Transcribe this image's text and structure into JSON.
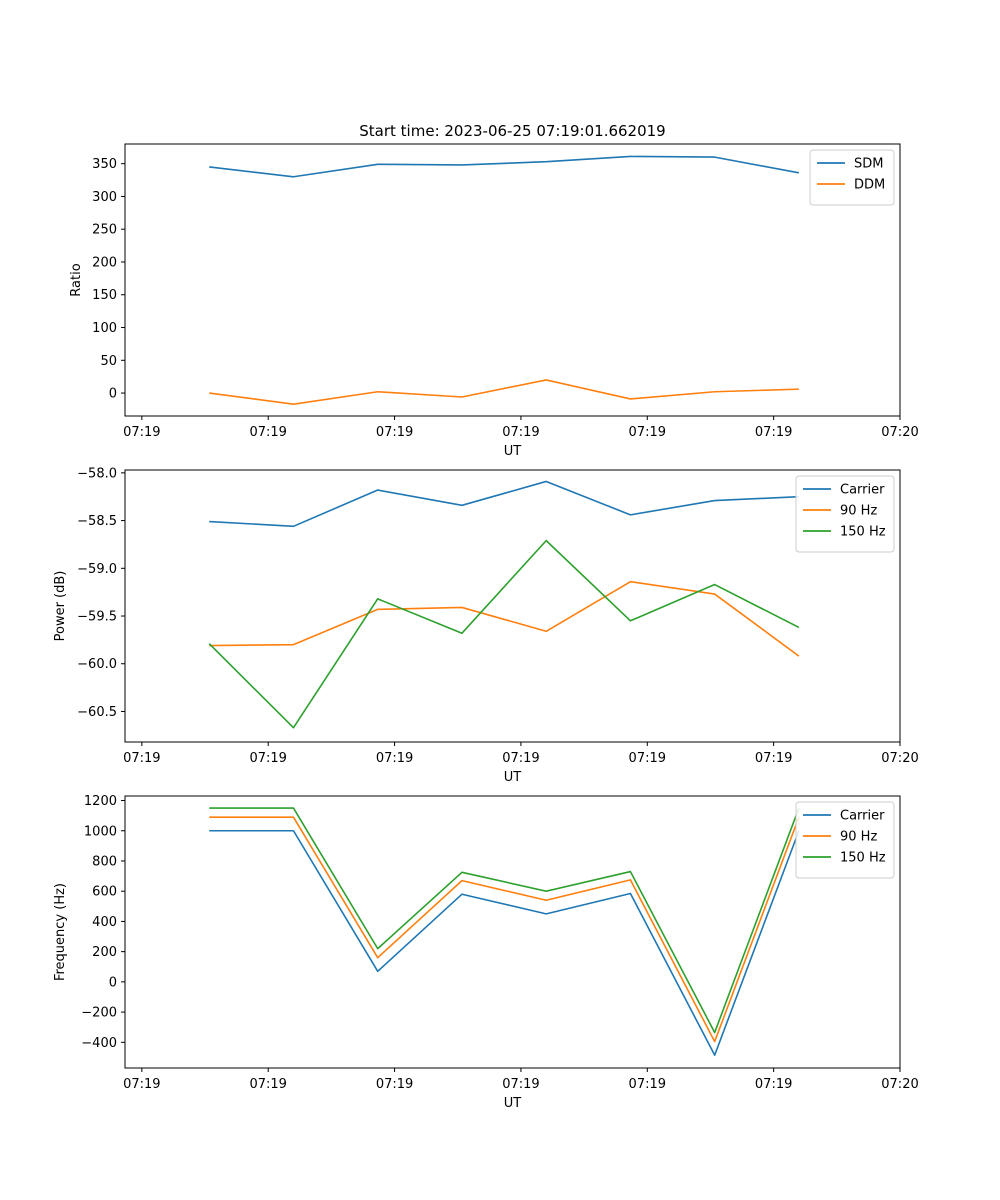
{
  "figure": {
    "title": "Start time: 2023-06-25 07:19:01.662019"
  },
  "colors": {
    "blue": "#1f77b4",
    "orange": "#ff7f0e",
    "green": "#2ca02c"
  },
  "chart_data": [
    {
      "type": "line",
      "title": "Start time: 2023-06-25 07:19:01.662019",
      "xlabel": "UT",
      "ylabel": "Ratio",
      "x": [
        1,
        2,
        3,
        4,
        5,
        6,
        7,
        8
      ],
      "xlim": [
        0,
        9.2
      ],
      "xticks": [
        0.2,
        1.7,
        3.2,
        4.7,
        6.2,
        7.7,
        9.2
      ],
      "xticklabels": [
        "07:19",
        "07:19",
        "07:19",
        "07:19",
        "07:19",
        "07:19",
        "07:20"
      ],
      "ylim": [
        -35,
        380
      ],
      "yticks": [
        0,
        50,
        100,
        150,
        200,
        250,
        300,
        350
      ],
      "yticklabels": [
        "0",
        "50",
        "100",
        "150",
        "200",
        "250",
        "300",
        "350"
      ],
      "legend": "top-right",
      "grid": false,
      "series": [
        {
          "name": "SDM",
          "color": "#1f77b4",
          "values": [
            345,
            330,
            349,
            348,
            353,
            361,
            360,
            336
          ]
        },
        {
          "name": "DDM",
          "color": "#ff7f0e",
          "values": [
            0,
            -17,
            2,
            -6,
            20,
            -9,
            2,
            6
          ]
        }
      ]
    },
    {
      "type": "line",
      "title": "",
      "xlabel": "UT",
      "ylabel": "Power (dB)",
      "x": [
        1,
        2,
        3,
        4,
        5,
        6,
        7,
        8
      ],
      "xlim": [
        0,
        9.2
      ],
      "xticks": [
        0.2,
        1.7,
        3.2,
        4.7,
        6.2,
        7.7,
        9.2
      ],
      "xticklabels": [
        "07:19",
        "07:19",
        "07:19",
        "07:19",
        "07:19",
        "07:19",
        "07:20"
      ],
      "ylim": [
        -60.82,
        -57.97
      ],
      "yticks": [
        -60.5,
        -60.0,
        -59.5,
        -59.0,
        -58.5,
        -58.0
      ],
      "yticklabels": [
        "−60.5",
        "−60.0",
        "−59.5",
        "−59.0",
        "−58.5",
        "−58.0"
      ],
      "legend": "top-right",
      "grid": false,
      "series": [
        {
          "name": "Carrier",
          "color": "#1f77b4",
          "values": [
            -58.51,
            -58.56,
            -58.18,
            -58.34,
            -58.09,
            -58.44,
            -58.29,
            -58.25
          ]
        },
        {
          "name": "90 Hz",
          "color": "#ff7f0e",
          "values": [
            -59.81,
            -59.8,
            -59.43,
            -59.41,
            -59.66,
            -59.14,
            -59.27,
            -59.92
          ]
        },
        {
          "name": "150 Hz",
          "color": "#2ca02c",
          "values": [
            -59.79,
            -60.67,
            -59.32,
            -59.68,
            -58.71,
            -59.55,
            -59.17,
            -59.62
          ]
        }
      ]
    },
    {
      "type": "line",
      "title": "",
      "xlabel": "UT",
      "ylabel": "Frequency (Hz)",
      "x": [
        1,
        2,
        3,
        4,
        5,
        6,
        7,
        8
      ],
      "xlim": [
        0,
        9.2
      ],
      "xticks": [
        0.2,
        1.7,
        3.2,
        4.7,
        6.2,
        7.7,
        9.2
      ],
      "xticklabels": [
        "07:19",
        "07:19",
        "07:19",
        "07:19",
        "07:19",
        "07:19",
        "07:20"
      ],
      "ylim": [
        -570,
        1230
      ],
      "yticks": [
        -400,
        -200,
        0,
        200,
        400,
        600,
        800,
        1000,
        1200
      ],
      "yticklabels": [
        "−400",
        "−200",
        "0",
        "200",
        "400",
        "600",
        "800",
        "1000",
        "1200"
      ],
      "legend": "top-right",
      "grid": false,
      "series": [
        {
          "name": "Carrier",
          "color": "#1f77b4",
          "values": [
            1000,
            1000,
            70,
            580,
            450,
            585,
            -485,
            1000
          ]
        },
        {
          "name": "90 Hz",
          "color": "#ff7f0e",
          "values": [
            1090,
            1090,
            160,
            670,
            540,
            675,
            -395,
            1090
          ]
        },
        {
          "name": "150 Hz",
          "color": "#2ca02c",
          "values": [
            1150,
            1150,
            220,
            725,
            600,
            730,
            -335,
            1150
          ]
        }
      ]
    }
  ]
}
